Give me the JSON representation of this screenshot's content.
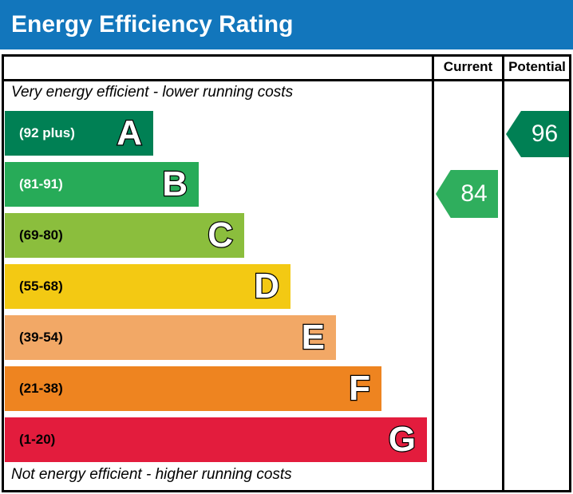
{
  "title": "Energy Efficiency Rating",
  "table": {
    "columns": [
      "Current",
      "Potential"
    ],
    "top_caption": "Very energy efficient - lower running costs",
    "bottom_caption": "Not energy efficient - higher running costs"
  },
  "colors": {
    "header_blue": "#1276bc",
    "border": "#000000"
  },
  "chart_data": {
    "type": "bar",
    "title": "Energy Efficiency Rating",
    "orientation": "horizontal-bands",
    "columns": [
      "Current",
      "Potential"
    ],
    "top_caption": "Very energy efficient - lower running costs",
    "bottom_caption": "Not energy efficient - higher running costs",
    "bands": [
      {
        "letter": "A",
        "range_label": "(92 plus)",
        "min": 92,
        "max": 100,
        "color": "#008054",
        "label_color": "#ffffff"
      },
      {
        "letter": "B",
        "range_label": "(81-91)",
        "min": 81,
        "max": 91,
        "color": "#27ab58",
        "label_color": "#ffffff"
      },
      {
        "letter": "C",
        "range_label": "(69-80)",
        "min": 69,
        "max": 80,
        "color": "#8bbe3d",
        "label_color": "#000000"
      },
      {
        "letter": "D",
        "range_label": "(55-68)",
        "min": 55,
        "max": 68,
        "color": "#f3c913",
        "label_color": "#000000"
      },
      {
        "letter": "E",
        "range_label": "(39-54)",
        "min": 39,
        "max": 54,
        "color": "#f2a866",
        "label_color": "#000000"
      },
      {
        "letter": "F",
        "range_label": "(21-38)",
        "min": 21,
        "max": 38,
        "color": "#ee8420",
        "label_color": "#000000"
      },
      {
        "letter": "G",
        "range_label": "(1-20)",
        "min": 1,
        "max": 20,
        "color": "#e31c3d",
        "label_color": "#000000"
      }
    ],
    "current": {
      "value": "84",
      "band": "B",
      "band_index": 1,
      "color": "#2fae5d"
    },
    "potential": {
      "value": "96",
      "band": "A",
      "band_index": 0,
      "color": "#008054"
    }
  }
}
